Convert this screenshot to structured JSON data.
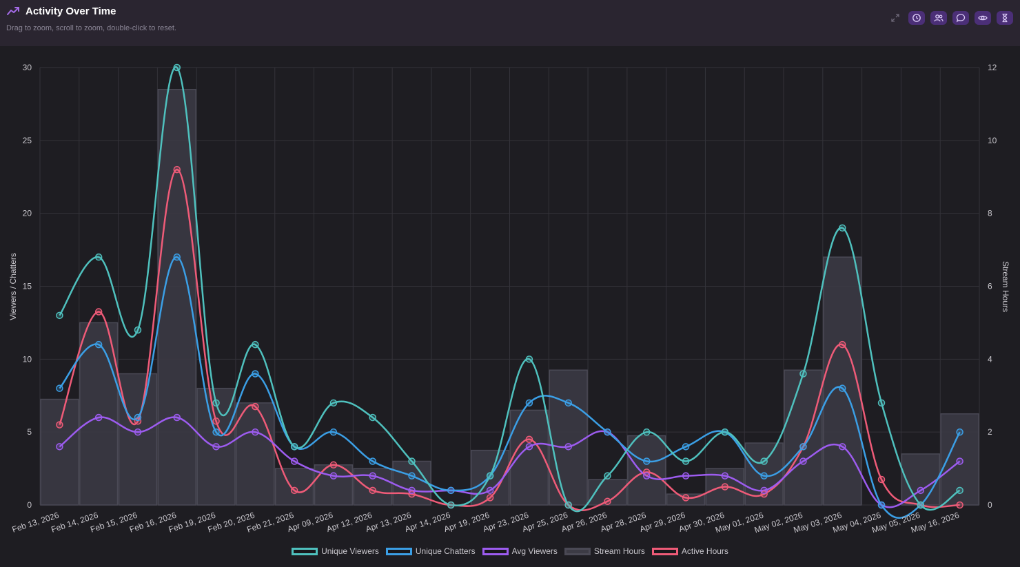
{
  "header": {
    "title": "Activity Over Time",
    "subtitle": "Drag to zoom, scroll to zoom, double-click to reset."
  },
  "toolbar": {
    "buttons": [
      {
        "name": "expand-icon"
      },
      {
        "name": "clock-icon"
      },
      {
        "name": "users-icon"
      },
      {
        "name": "chat-icon"
      },
      {
        "name": "eye-icon"
      },
      {
        "name": "hourglass-icon"
      }
    ]
  },
  "chart_data": {
    "type": "line",
    "title": "",
    "ylabel": "Viewers / Chatters",
    "y2label": "Stream Hours",
    "ylim": [
      0,
      30
    ],
    "y2lim": [
      0,
      12
    ],
    "yticks": [
      0,
      5,
      10,
      15,
      20,
      25,
      30
    ],
    "y2ticks": [
      0,
      2,
      4,
      6,
      8,
      10,
      12
    ],
    "grid": true,
    "legend_position": "bottom",
    "categories": [
      "Feb 13, 2026",
      "Feb 14, 2026",
      "Feb 15, 2026",
      "Feb 16, 2026",
      "Feb 19, 2026",
      "Feb 20, 2026",
      "Feb 21, 2026",
      "Apr 09, 2026",
      "Apr 12, 2026",
      "Apr 13, 2026",
      "Apr 14, 2026",
      "Apr 19, 2026",
      "Apr 23, 2026",
      "Apr 25, 2026",
      "Apr 26, 2026",
      "Apr 28, 2026",
      "Apr 29, 2026",
      "Apr 30, 2026",
      "May 01, 2026",
      "May 02, 2026",
      "May 03, 2026",
      "May 04, 2026",
      "May 05, 2026",
      "May 16, 2026"
    ],
    "series": [
      {
        "name": "Unique Viewers",
        "type": "line",
        "axis": "left",
        "color": "#4fc1be",
        "values": [
          13,
          17,
          12,
          30,
          7,
          11,
          4,
          7,
          6,
          3,
          0,
          2,
          10,
          0,
          2,
          5,
          3,
          5,
          3,
          9,
          19,
          7,
          0,
          1
        ]
      },
      {
        "name": "Unique Chatters",
        "type": "line",
        "axis": "left",
        "color": "#3b9fe6",
        "values": [
          8,
          11,
          6,
          17,
          5,
          9,
          4,
          5,
          3,
          2,
          1,
          2,
          7,
          7,
          5,
          3,
          4,
          5,
          2,
          4,
          8,
          0,
          0,
          5
        ]
      },
      {
        "name": "Avg Viewers",
        "type": "line",
        "axis": "left",
        "color": "#9d5cf0",
        "values": [
          4,
          6,
          5,
          6,
          4,
          5,
          3,
          2,
          2,
          1,
          1,
          1,
          4,
          4,
          5,
          2,
          2,
          2,
          1,
          3,
          4,
          0,
          1,
          3
        ]
      },
      {
        "name": "Stream Hours",
        "type": "bar",
        "axis": "right",
        "color": "#3c3b45",
        "values": [
          2.9,
          5.0,
          3.6,
          11.4,
          3.2,
          2.8,
          1.0,
          1.1,
          1.0,
          1.2,
          0,
          1.5,
          2.6,
          3.7,
          0.7,
          1.9,
          0.3,
          1.0,
          1.7,
          3.7,
          6.8,
          0,
          1.4,
          2.5
        ]
      },
      {
        "name": "Active Hours",
        "type": "line",
        "axis": "right",
        "color": "#ef5b78",
        "values": [
          2.2,
          5.3,
          2.3,
          9.2,
          2.3,
          2.7,
          0.4,
          1.1,
          0.4,
          0.3,
          0,
          0.2,
          1.8,
          0,
          0.1,
          0.9,
          0.2,
          0.5,
          0.3,
          1.6,
          4.4,
          0.7,
          0,
          0
        ]
      }
    ]
  }
}
